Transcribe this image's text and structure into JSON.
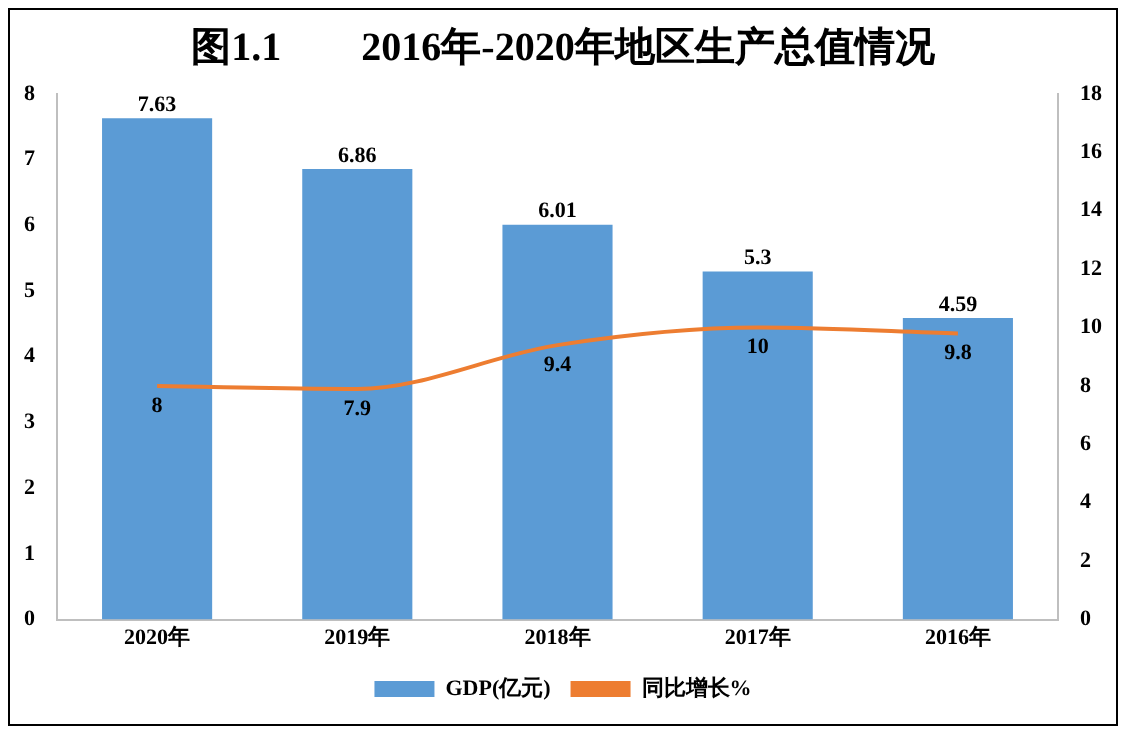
{
  "chart_data": {
    "type": "bar",
    "title": "图1.1　　2016年-2020年地区生产总值情况",
    "categories": [
      "2020年",
      "2019年",
      "2018年",
      "2017年",
      "2016年"
    ],
    "series": [
      {
        "name": "GDP(亿元)",
        "color": "#5b9bd5",
        "values": [
          7.63,
          6.86,
          6.01,
          5.3,
          4.59
        ]
      },
      {
        "name": "同比增长%",
        "type": "line",
        "color": "#ed7d31",
        "axis": "y2",
        "values": [
          8,
          7.9,
          9.4,
          10,
          9.8
        ]
      }
    ],
    "ylim": [
      0,
      8
    ],
    "yticks": [
      0,
      1,
      2,
      3,
      4,
      5,
      6,
      7,
      8
    ],
    "y2lim": [
      0,
      18
    ],
    "y2ticks": [
      0,
      2,
      4,
      6,
      8,
      10,
      12,
      14,
      16,
      18
    ],
    "data_labels": true,
    "legend": "bottom",
    "grid": false,
    "marker": "none",
    "line_style": "solid"
  }
}
